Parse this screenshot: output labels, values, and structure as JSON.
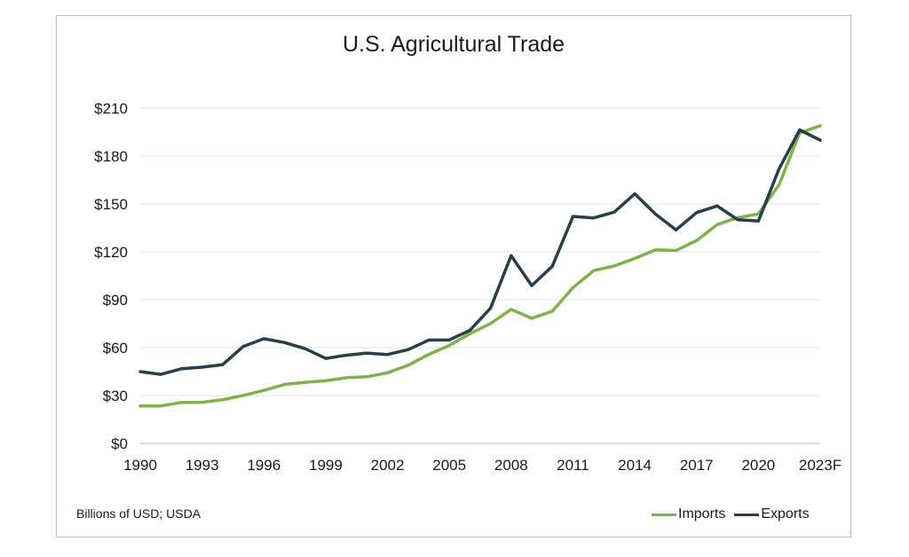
{
  "chart_data": {
    "type": "line",
    "title": "U.S. Agricultural Trade",
    "xlabel": "",
    "ylabel": "",
    "source_note": "Billions of USD; USDA",
    "x": [
      "1990",
      "1991",
      "1992",
      "1993",
      "1994",
      "1995",
      "1996",
      "1997",
      "1998",
      "1999",
      "2000",
      "2001",
      "2002",
      "2003",
      "2004",
      "2005",
      "2006",
      "2007",
      "2008",
      "2009",
      "2010",
      "2011",
      "2012",
      "2013",
      "2014",
      "2015",
      "2016",
      "2017",
      "2018",
      "2019",
      "2020",
      "2021",
      "2022",
      "2023F"
    ],
    "x_tick_labels": [
      "1990",
      "1993",
      "1996",
      "1999",
      "2002",
      "2005",
      "2008",
      "2011",
      "2014",
      "2017",
      "2020",
      "2023F"
    ],
    "y_tick_labels": [
      "$0",
      "$30",
      "$60",
      "$90",
      "$120",
      "$150",
      "$180",
      "$210"
    ],
    "y_ticks": [
      0,
      30,
      60,
      90,
      120,
      150,
      180,
      210
    ],
    "ylim": [
      0,
      210
    ],
    "grid": true,
    "legend_position": "bottom-right",
    "series": [
      {
        "name": "Imports",
        "color": "#7fb24a",
        "values": [
          23.5,
          23.5,
          25.7,
          25.8,
          27.4,
          30.1,
          33.2,
          37.0,
          38.3,
          39.3,
          41.2,
          41.8,
          44.3,
          49.0,
          55.8,
          61.4,
          68.8,
          75.1,
          84.0,
          78.4,
          82.9,
          97.6,
          108.3,
          111.2,
          115.9,
          121.2,
          120.9,
          127.1,
          137.1,
          141.5,
          143.8,
          162.0,
          194.5,
          199.0
        ]
      },
      {
        "name": "Exports",
        "color": "#263f4b",
        "values": [
          45.0,
          43.3,
          46.8,
          47.8,
          49.4,
          60.8,
          65.6,
          63.2,
          59.4,
          53.3,
          55.3,
          56.6,
          55.7,
          58.8,
          64.8,
          64.9,
          70.9,
          84.8,
          117.6,
          98.9,
          111.0,
          142.2,
          141.3,
          144.9,
          156.4,
          143.7,
          133.8,
          144.6,
          148.8,
          140.1,
          139.4,
          172.0,
          196.4,
          190.0
        ]
      }
    ]
  }
}
